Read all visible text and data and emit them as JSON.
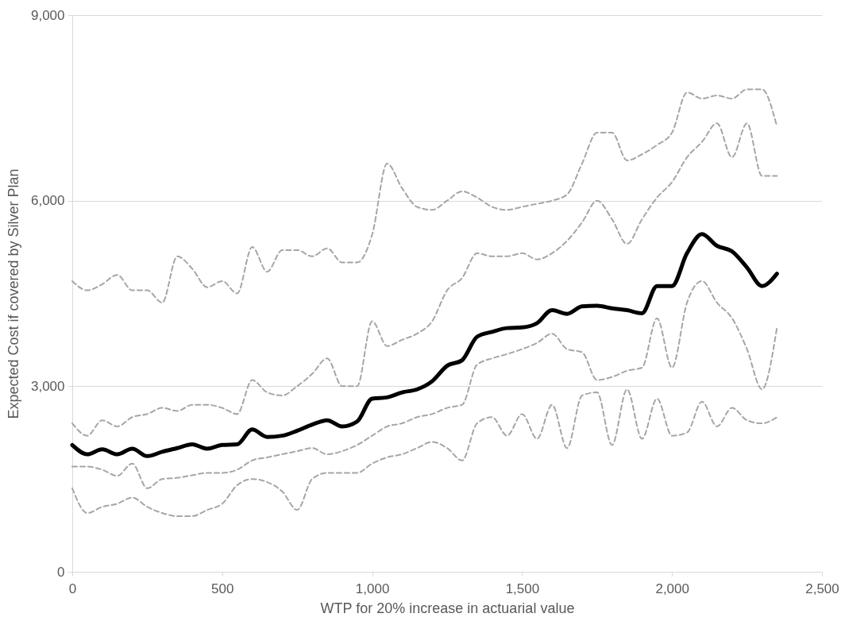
{
  "chart_data": {
    "type": "line",
    "xlabel": "WTP for 20% increase in actuarial value",
    "ylabel": "Expected Cost if covered by Silver Plan",
    "x": [
      0,
      50,
      100,
      150,
      200,
      250,
      300,
      350,
      400,
      450,
      500,
      550,
      600,
      650,
      700,
      750,
      800,
      850,
      900,
      950,
      1000,
      1050,
      1100,
      1150,
      1200,
      1250,
      1300,
      1350,
      1400,
      1450,
      1500,
      1550,
      1600,
      1650,
      1700,
      1750,
      1800,
      1850,
      1900,
      1950,
      2000,
      2050,
      2100,
      2150,
      2200,
      2250,
      2300,
      2350
    ],
    "series": [
      {
        "color": "#a6a6a6",
        "line_style": "dashed",
        "values": [
          4700,
          4550,
          4650,
          4800,
          4550,
          4550,
          4350,
          5100,
          4900,
          4600,
          4700,
          4500,
          5250,
          4850,
          5200,
          5200,
          5100,
          5230,
          5000,
          5000,
          5450,
          6600,
          6200,
          5900,
          5850,
          6000,
          6150,
          6050,
          5900,
          5850,
          5900,
          5950,
          6000,
          6100,
          6600,
          7100,
          7100,
          6650,
          6750,
          6900,
          7100,
          7750,
          7650,
          7700,
          7650,
          7800,
          7800,
          7200
        ]
      },
      {
        "color": "#a6a6a6",
        "line_style": "dashed",
        "values": [
          2400,
          2200,
          2450,
          2350,
          2500,
          2550,
          2650,
          2600,
          2700,
          2700,
          2650,
          2550,
          3100,
          2900,
          2850,
          3000,
          3200,
          3450,
          3000,
          3000,
          4050,
          3650,
          3750,
          3850,
          4050,
          4550,
          4750,
          5150,
          5100,
          5100,
          5150,
          5050,
          5150,
          5350,
          5650,
          6000,
          5700,
          5300,
          5700,
          6050,
          6300,
          6700,
          6950,
          7250,
          6700,
          7250,
          6400,
          6400
        ]
      },
      {
        "color": "#000000",
        "line_style": "solid",
        "values": [
          2050,
          1900,
          1980,
          1900,
          1990,
          1870,
          1940,
          2000,
          2060,
          1990,
          2050,
          2060,
          2300,
          2180,
          2200,
          2280,
          2380,
          2450,
          2350,
          2430,
          2800,
          2820,
          2900,
          2950,
          3080,
          3330,
          3420,
          3800,
          3880,
          3940,
          3950,
          4020,
          4230,
          4170,
          4290,
          4300,
          4260,
          4230,
          4180,
          4620,
          4620,
          5150,
          5460,
          5270,
          5180,
          4920,
          4620,
          4820
        ]
      },
      {
        "color": "#a6a6a6",
        "line_style": "dashed",
        "values": [
          1700,
          1700,
          1650,
          1550,
          1750,
          1350,
          1500,
          1520,
          1560,
          1600,
          1600,
          1650,
          1800,
          1850,
          1900,
          1950,
          2000,
          1900,
          1950,
          2050,
          2200,
          2350,
          2400,
          2500,
          2550,
          2650,
          2700,
          3350,
          3450,
          3520,
          3600,
          3700,
          3850,
          3600,
          3550,
          3100,
          3150,
          3250,
          3300,
          4100,
          3300,
          4350,
          4700,
          4350,
          4100,
          3600,
          2950,
          3950
        ]
      },
      {
        "color": "#a6a6a6",
        "line_style": "dashed",
        "values": [
          1350,
          950,
          1050,
          1100,
          1200,
          1050,
          950,
          900,
          900,
          1000,
          1100,
          1400,
          1500,
          1450,
          1300,
          1000,
          1500,
          1600,
          1600,
          1600,
          1750,
          1850,
          1900,
          2000,
          2100,
          2000,
          1800,
          2400,
          2500,
          2200,
          2550,
          2150,
          2700,
          2000,
          2850,
          2900,
          2050,
          2950,
          2150,
          2800,
          2200,
          2250,
          2750,
          2350,
          2650,
          2450,
          2400,
          2500
        ]
      }
    ],
    "xlim": [
      0,
      2500
    ],
    "xticks": [
      0,
      500,
      {
        "value": 1000,
        "label": "1,000"
      },
      {
        "value": 1500,
        "label": "1,500"
      },
      {
        "value": 2000,
        "label": "2,000"
      },
      {
        "value": 2500,
        "label": "2,500"
      }
    ],
    "ylim": [
      0,
      9000
    ],
    "yticks": [
      0,
      {
        "value": 3000,
        "label": "3,000"
      },
      {
        "value": 6000,
        "label": "6,000"
      },
      {
        "value": 9000,
        "label": "9,000"
      }
    ],
    "grid": "y",
    "marker": "none"
  }
}
